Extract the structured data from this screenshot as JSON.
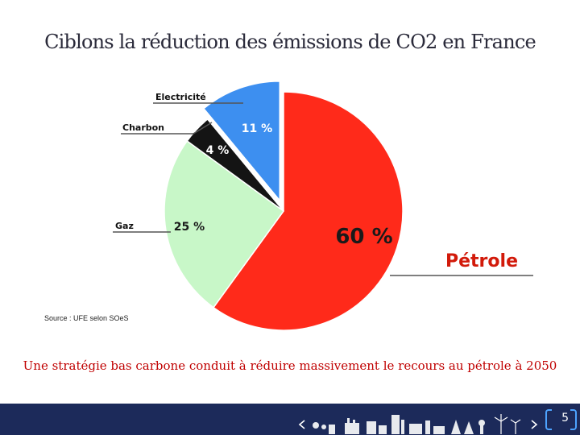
{
  "slide": {
    "title": "Ciblons la réduction des émissions de CO2 en France",
    "source": "Source : UFE selon SOeS",
    "caption": "Une stratégie bas carbone conduit à réduire massivement le recours au pétrole à 2050",
    "page_number": "5"
  },
  "chart_data": {
    "type": "pie",
    "title": "",
    "slices": [
      {
        "label": "Pétrole",
        "value": 60,
        "value_label": "60 %",
        "color": "#ff2a1a"
      },
      {
        "label": "Gaz",
        "value": 25,
        "value_label": "25 %",
        "color": "#c8f7c8"
      },
      {
        "label": "Charbon",
        "value": 4,
        "value_label": "4 %",
        "color": "#141414"
      },
      {
        "label": "Electricité",
        "value": 11,
        "value_label": "11 %",
        "color": "#3d8ff0"
      }
    ],
    "start_angle_deg": 0,
    "direction": "clockwise",
    "exploded_slice": "Electricité",
    "label_colors": {
      "Pétrole": "#d21a0a",
      "Gaz": "#111111",
      "Charbon": "#111111",
      "Electricité": "#111111"
    }
  },
  "footer": {
    "background": "#1c2a5a",
    "icons": [
      "chevron-left-icon",
      "industry-skyline-icon",
      "wind-turbine-icon",
      "chevron-right-icon"
    ]
  }
}
